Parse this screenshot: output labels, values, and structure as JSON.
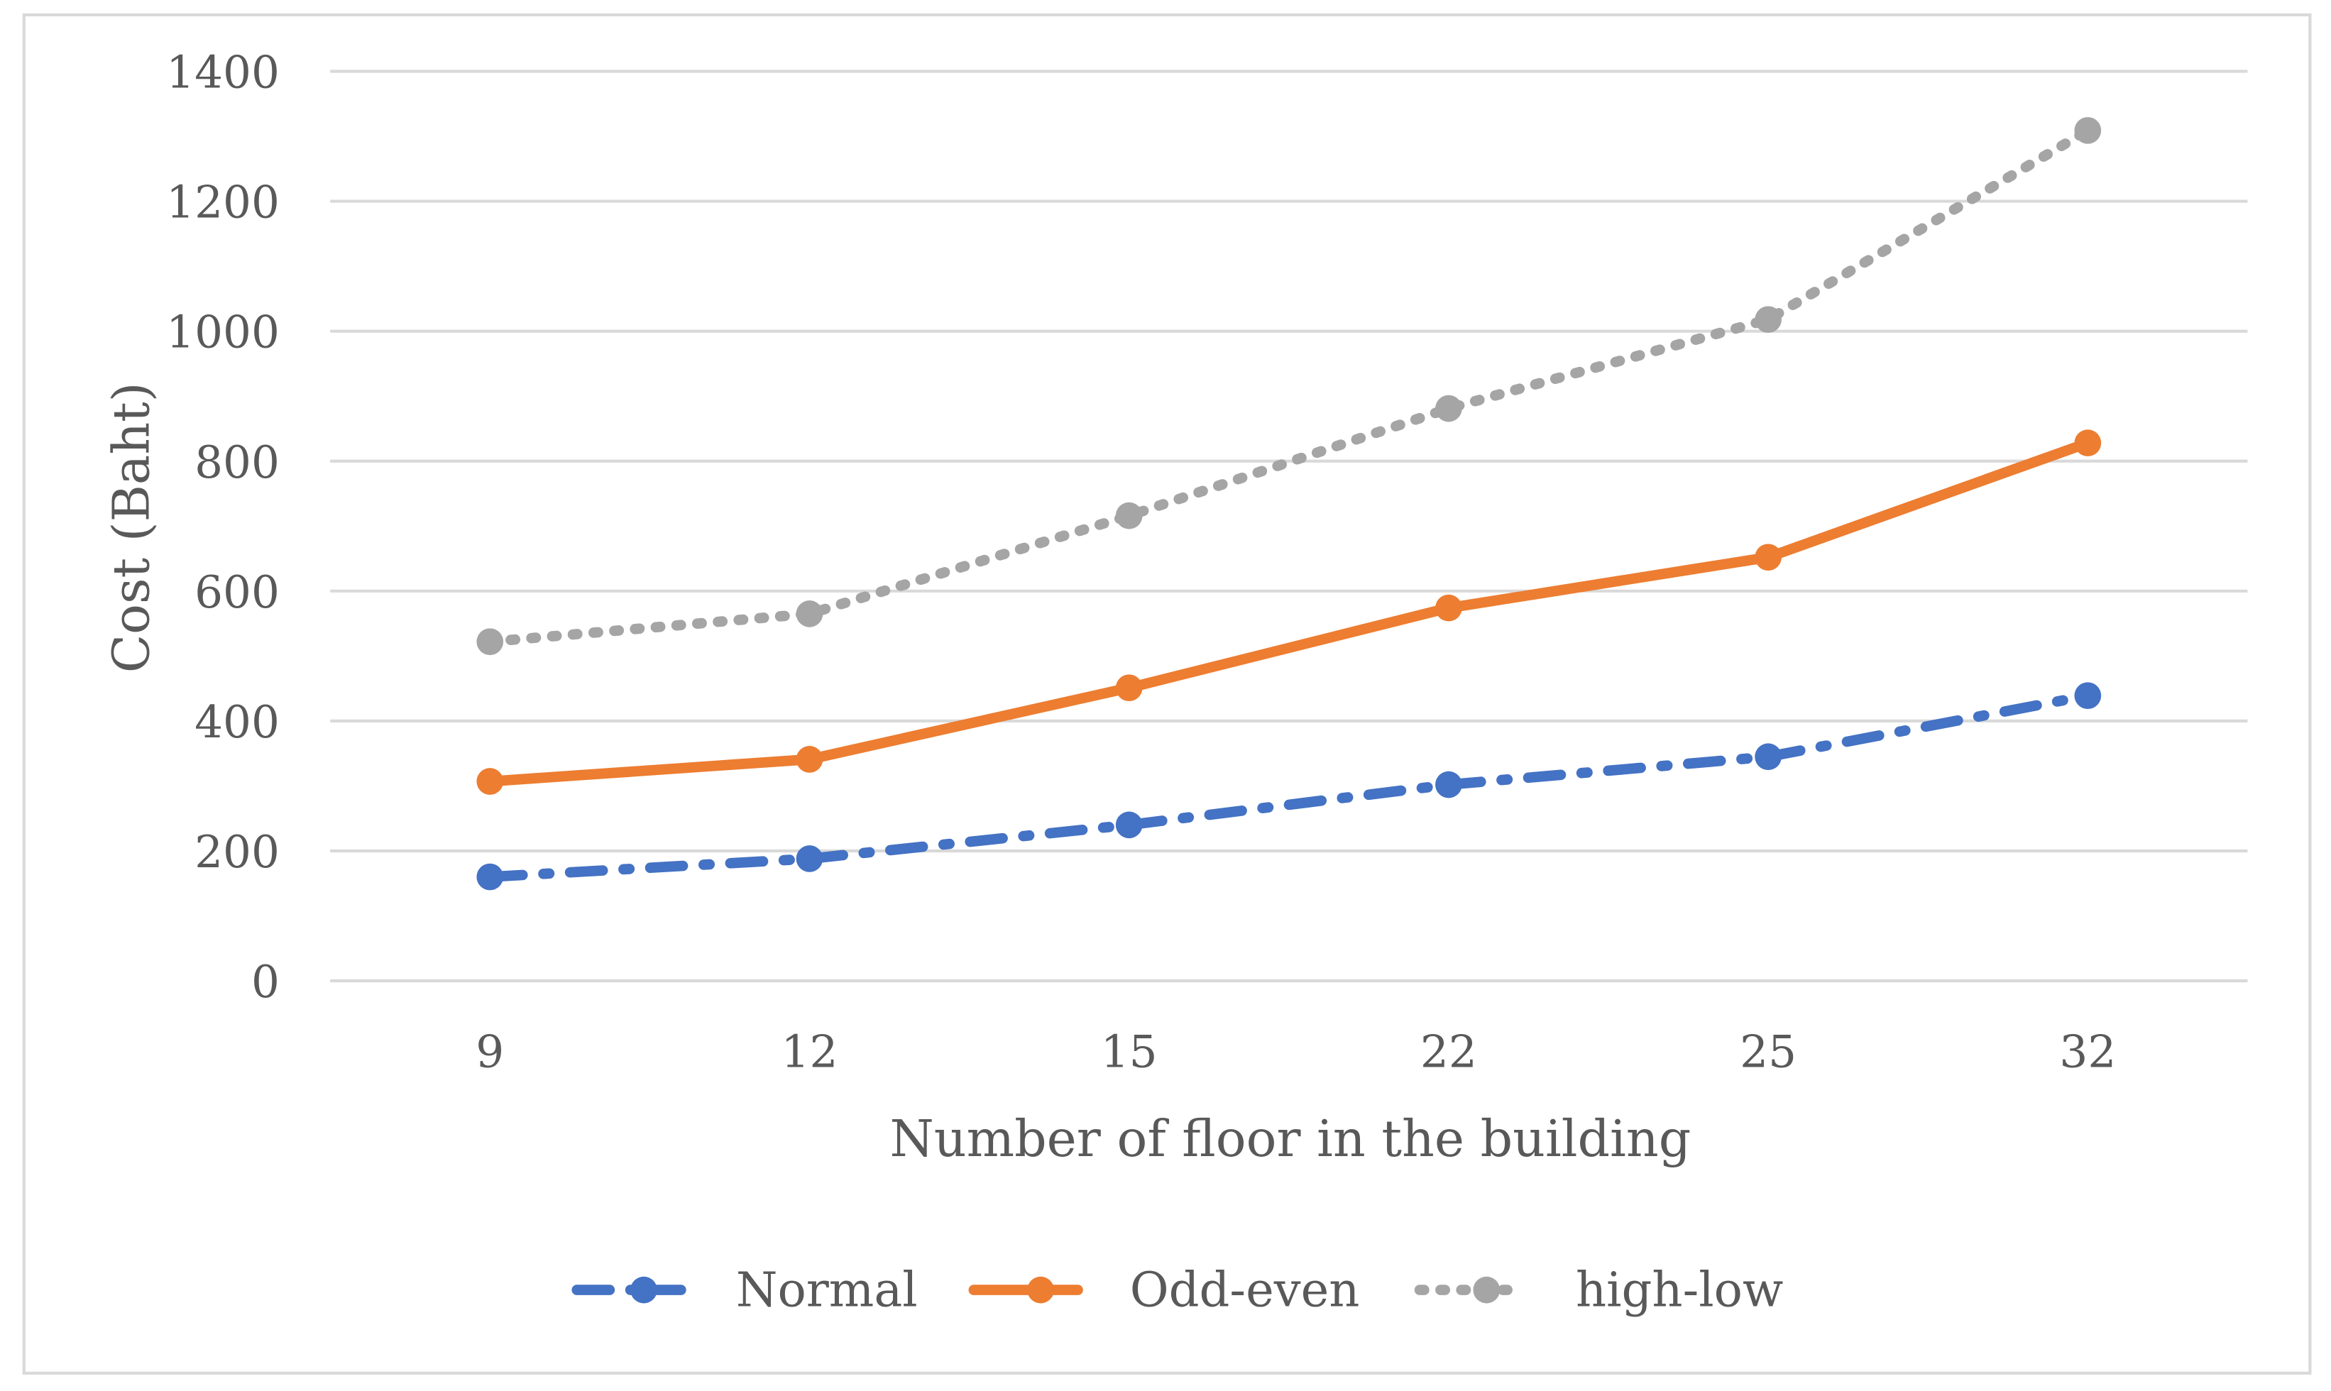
{
  "chart_data": {
    "type": "line",
    "title": "",
    "xlabel": "Number of floor in the building",
    "ylabel": "Cost (Baht)",
    "categories": [
      "9",
      "12",
      "15",
      "22",
      "25",
      "32"
    ],
    "ylim": [
      0,
      1400
    ],
    "yticks": [
      "0",
      "200",
      "400",
      "600",
      "800",
      "1000",
      "1200",
      "1400"
    ],
    "grid": true,
    "legend_position": "bottom",
    "series": [
      {
        "name": "Normal",
        "color": "#4472C4",
        "style": "dash-dot",
        "values": [
          160,
          188,
          240,
          302,
          345,
          439
        ]
      },
      {
        "name": "Odd-even",
        "color": "#ED7D31",
        "style": "solid",
        "values": [
          307,
          341,
          451,
          574,
          652,
          828
        ]
      },
      {
        "name": "high-low",
        "color": "#A5A5A5",
        "style": "dotted",
        "values": [
          522,
          565,
          716,
          881,
          1018,
          1309
        ]
      }
    ]
  }
}
